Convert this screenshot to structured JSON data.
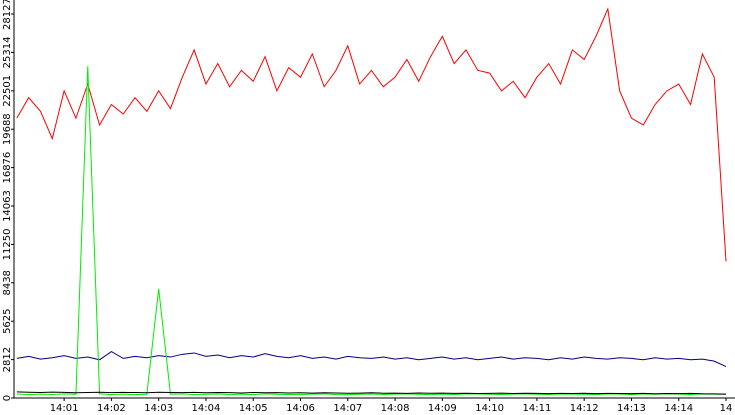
{
  "chart_data": {
    "type": "line",
    "x": [
      840,
      840.25,
      840.5,
      840.75,
      841,
      841.25,
      841.5,
      841.75,
      842,
      842.25,
      842.5,
      842.75,
      843,
      843.25,
      843.5,
      843.75,
      844,
      844.25,
      844.5,
      844.75,
      845,
      845.25,
      845.5,
      845.75,
      846,
      846.25,
      846.5,
      846.75,
      847,
      847.25,
      847.5,
      847.75,
      848,
      848.25,
      848.5,
      848.75,
      849,
      849.25,
      849.5,
      849.75,
      850,
      850.25,
      850.5,
      850.75,
      851,
      851.25,
      851.5,
      851.75,
      852,
      852.25,
      852.5,
      852.75,
      853,
      853.25,
      853.5,
      853.75,
      854,
      854.25,
      854.5,
      854.75,
      855
    ],
    "series": [
      {
        "color": "#ff0000",
        "values": [
          20500,
          22000,
          21000,
          19000,
          22500,
          20500,
          23000,
          20000,
          21500,
          20800,
          22000,
          21000,
          22500,
          21200,
          23500,
          25500,
          23000,
          24500,
          22800,
          24000,
          23200,
          25000,
          22500,
          24200,
          23500,
          25200,
          22800,
          24000,
          25800,
          23000,
          24000,
          22800,
          23500,
          24800,
          23200,
          25000,
          26500,
          24500,
          25500,
          24000,
          23800,
          22500,
          23200,
          22000,
          23500,
          24500,
          23000,
          25500,
          24800,
          26500,
          28500,
          22500,
          20500,
          20000,
          21500,
          22500,
          23000,
          21500,
          25200,
          23500,
          10000
        ]
      },
      {
        "color": "#000080",
        "values": [
          2900,
          3050,
          2850,
          2950,
          3100,
          2900,
          3000,
          2800,
          3400,
          2900,
          3050,
          2950,
          3100,
          3000,
          3200,
          3300,
          3050,
          3150,
          2950,
          3100,
          3000,
          3250,
          3050,
          2950,
          3100,
          2900,
          3000,
          2850,
          3050,
          2950,
          2900,
          3000,
          2850,
          2950,
          2800,
          2900,
          3000,
          2850,
          2950,
          2800,
          2900,
          3000,
          2850,
          2950,
          2900,
          2800,
          2950,
          2850,
          3000,
          2900,
          2850,
          2950,
          2900,
          2800,
          2950,
          2850,
          2900,
          2800,
          2850,
          2700,
          2300
        ]
      },
      {
        "color": "#00ee00",
        "values": [
          300,
          250,
          280,
          260,
          300,
          280,
          24300,
          300,
          260,
          280,
          250,
          270,
          8000,
          280,
          300,
          250,
          270,
          290,
          260,
          280,
          250,
          300,
          270,
          260,
          250,
          280,
          300,
          260,
          250,
          270,
          290,
          260,
          280,
          300,
          270,
          250,
          280,
          260,
          300,
          290,
          270,
          260,
          280,
          300,
          270,
          260,
          290,
          280,
          270,
          250,
          300,
          280,
          260,
          290,
          270,
          300,
          280,
          260,
          290,
          280,
          270
        ]
      },
      {
        "color": "#000000",
        "values": [
          450,
          420,
          400,
          430,
          410,
          380,
          400,
          420,
          390,
          410,
          400,
          380,
          420,
          400,
          390,
          410,
          380,
          400,
          390,
          370,
          400,
          380,
          390,
          370,
          380,
          360,
          380,
          370,
          350,
          360,
          380,
          350,
          360,
          340,
          370,
          350,
          360,
          340,
          350,
          330,
          340,
          360,
          330,
          350,
          340,
          320,
          340,
          330,
          350,
          320,
          340,
          330,
          320,
          340,
          310,
          330,
          320,
          340,
          310,
          300,
          280
        ]
      }
    ],
    "xlim": [
      839.94,
      855.19
    ],
    "xticks": [
      {
        "value": 841,
        "label": "14:01"
      },
      {
        "value": 842,
        "label": "14:02"
      },
      {
        "value": 843,
        "label": "14:03"
      },
      {
        "value": 844,
        "label": "14:04"
      },
      {
        "value": 845,
        "label": "14:05"
      },
      {
        "value": 846,
        "label": "14:06"
      },
      {
        "value": 847,
        "label": "14:07"
      },
      {
        "value": 848,
        "label": "14:08"
      },
      {
        "value": 849,
        "label": "14:09"
      },
      {
        "value": 850,
        "label": "14:10"
      },
      {
        "value": 851,
        "label": "14:11"
      },
      {
        "value": 852,
        "label": "14:12"
      },
      {
        "value": 853,
        "label": "14:13"
      },
      {
        "value": 854,
        "label": "14:14"
      },
      {
        "value": 855,
        "label": "14"
      }
    ],
    "ylim": [
      0,
      29155
    ],
    "yticks": [
      0,
      2812,
      5625,
      8438,
      11250,
      14063,
      16876,
      19688,
      22501,
      25314,
      28127
    ],
    "grid": false
  }
}
